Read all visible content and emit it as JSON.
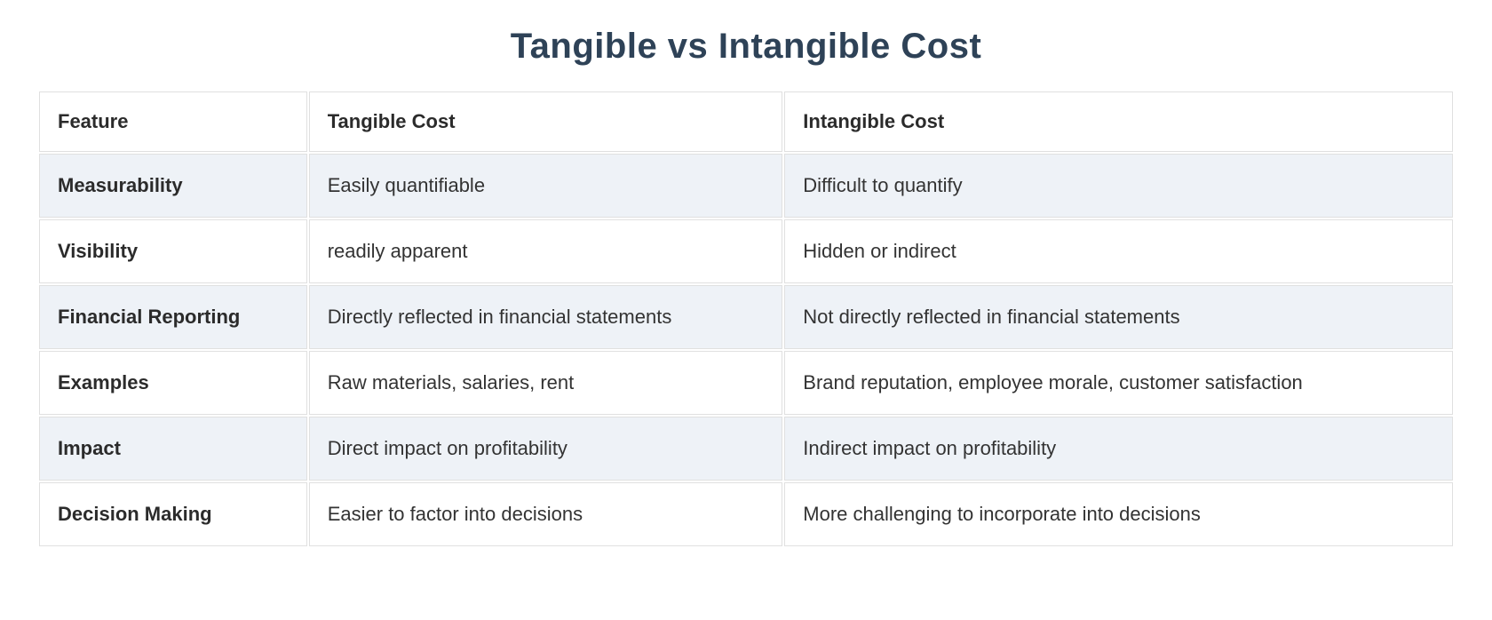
{
  "page": {
    "title": "Tangible vs Intangible Cost"
  },
  "colors": {
    "title_text": "#2e4257",
    "body_text": "#333333",
    "stripe_background": "#eef2f7",
    "cell_border": "#e0e0e0",
    "page_background": "#ffffff"
  },
  "table": {
    "headers": [
      "Feature",
      "Tangible Cost",
      "Intangible Cost"
    ],
    "rows": [
      {
        "feature": "Measurability",
        "tangible": "Easily quantifiable",
        "intangible": "Difficult to quantify"
      },
      {
        "feature": "Visibility",
        "tangible": "readily apparent",
        "intangible": "Hidden or indirect"
      },
      {
        "feature": "Financial Reporting",
        "tangible": "Directly reflected in financial statements",
        "intangible": "Not directly reflected in financial statements"
      },
      {
        "feature": "Examples",
        "tangible": "Raw materials, salaries, rent",
        "intangible": "Brand reputation, employee morale, customer satisfaction"
      },
      {
        "feature": "Impact",
        "tangible": "Direct impact on profitability",
        "intangible": "Indirect impact on profitability"
      },
      {
        "feature": "Decision Making",
        "tangible": "Easier to factor into decisions",
        "intangible": "More challenging to incorporate into decisions"
      }
    ]
  }
}
